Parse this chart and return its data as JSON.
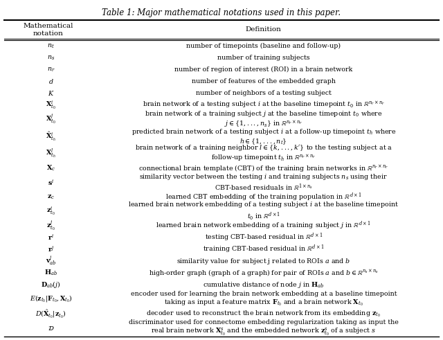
{
  "title": "Table 1: Major mathematical notations used in this paper.",
  "col1_header": "Mathematical\nnotation",
  "col2_header": "Definition",
  "rows": [
    [
      "$n_t$",
      "number of timepoints (baseline and follow-up)"
    ],
    [
      "$n_s$",
      "number of training subjects"
    ],
    [
      "$n_r$",
      "number of region of interest (ROI) in a brain network"
    ],
    [
      "$d$",
      "number of features of the embedded graph"
    ],
    [
      "$K$",
      "number of neighbors of a testing subject"
    ],
    [
      "$\\mathbf{X}^i_{t_0}$",
      "brain network of a testing subject $i$ at the baseline timepoint $t_0$ in $\\mathbb{R}^{n_r \\times n_r}$"
    ],
    [
      "$\\mathbf{X}^j_{t_0}$",
      "brain network of a training subject $j$ at the baseline timepoint $t_0$ where\n$j \\in \\{1,...,n_s\\}$ in $\\mathbb{R}^{n_r \\times n_r}$"
    ],
    [
      "$\\hat{\\mathbf{X}}^i_{t_h}$",
      "predicted brain network of a testing subject $i$ at a follow-up timepoint $t_h$ where\n$h \\in \\{1,...,n_t\\}$"
    ],
    [
      "$\\mathbf{X}^l_{t_h}$",
      "brain network of a training neighbor $l \\in \\{k,...,k'\\}$ to the testing subject at a\nfollow-up timepoint $t_h$ in $\\mathbb{R}^{n_r \\times n_r}$"
    ],
    [
      "$\\mathbf{X}_c$",
      "connectional brain template (CBT) of the training brain networks in $\\mathbb{R}^{n_r \\times n_r}$"
    ],
    [
      "$\\mathbf{s}^i$",
      "similarity vector between the testing $i$ and training subjects $n_s$ using their\nCBT-based residuals in $\\mathbb{R}^{1 \\times n_s}$"
    ],
    [
      "$\\mathbf{z}_c$",
      "learned CBT embedding of the training population in $\\mathbb{R}^{d \\times 1}$"
    ],
    [
      "$\\mathbf{z}^i_{t_0}$",
      "learned brain network embedding of a testing subject $i$ at the baseline timepoint\n$t_0$ in $\\mathbb{R}^{d \\times 1}$"
    ],
    [
      "$\\mathbf{z}^j_{t_0}$",
      "learned brain network embedding of a training subject $j$ in $\\mathbb{R}^{d \\times 1}$"
    ],
    [
      "$\\mathbf{r}^i$",
      "testing CBT-based residual in $\\mathbb{R}^{d \\times 1}$"
    ],
    [
      "$\\mathbf{r}^j$",
      "training CBT-based residual in $\\mathbb{R}^{d \\times 1}$"
    ],
    [
      "$\\mathbf{v}^j_{ab}$",
      "similarity value for subject j related to ROIs $a$ and $b$"
    ],
    [
      "$\\mathbf{H}_{ab}$",
      "high-order graph (graph of a graph) for pair of ROIs $a$ and $b \\in \\mathbb{R}^{n_s \\times n_s}$"
    ],
    [
      "$\\mathbf{D}_{ab}(j)$",
      "cumulative distance of node $j$ in $\\mathbf{H}_{ab}$"
    ],
    [
      "$E(\\mathbf{z}_{t_0}|\\mathbf{F}_{t_0}, \\mathbf{X}_{t_0})$",
      "encoder used for learning the brain network embedding at a baseline timepoint\ntaking as input a feature matrix $\\mathbf{F}_{t_0}$ and a brain network $\\mathbf{X}_{t_0}$"
    ],
    [
      "$D(\\hat{\\mathbf{X}}_{t_0}|\\mathbf{z}_{t_0})$",
      "decoder used to reconstruct the brain network from its embedding $\\mathbf{z}_{t_0}$"
    ],
    [
      "$\\mathcal{D}$",
      "discriminator used for connectome embedding regularization taking as input the\nreal brain network $\\mathbf{X}^s_{t_0}$ and the embedded network $\\mathbf{z}^s_{t_0}$ of a subject $s$"
    ]
  ]
}
